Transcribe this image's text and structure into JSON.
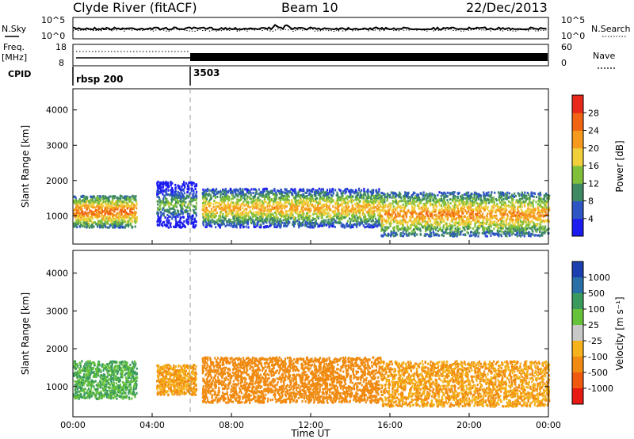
{
  "header": {
    "station": "Clyde River (fitACF)",
    "beam": "Beam 10",
    "date": "22/Dec/2013"
  },
  "noise_panel": {
    "left_label": "N.Sky",
    "left_ticks": [
      "10^5",
      "10^0"
    ],
    "right_ticks": [
      "10^5",
      "10^0"
    ],
    "right_label": "N.Search"
  },
  "freq_panel": {
    "left_label_top": "Freq.",
    "left_label_unit": "[MHz]",
    "left_ticks": [
      "18",
      "8"
    ],
    "right_ticks": [
      "60",
      "0"
    ],
    "right_label": "Nave"
  },
  "cpid_panel": {
    "label": "CPID",
    "segments": [
      {
        "start_hour": 0,
        "name": "rbsp 200"
      },
      {
        "start_hour": 6,
        "name": "3503"
      }
    ]
  },
  "range_axis": {
    "label": "Slant Range [km]",
    "ticks": [
      "1000",
      "2000",
      "3000",
      "4000"
    ]
  },
  "time_axis": {
    "label": "Time UT",
    "ticks": [
      "00:00",
      "04:00",
      "08:00",
      "12:00",
      "16:00",
      "20:00",
      "00:00"
    ]
  },
  "power_colorbar": {
    "label": "Power [dB]",
    "ticks": [
      "4",
      "8",
      "12",
      "16",
      "20",
      "24",
      "28"
    ],
    "colors": [
      "#1c1cf0",
      "#2d55c4",
      "#3f8a62",
      "#7fbf3a",
      "#f0cf3a",
      "#f59a1c",
      "#f06414",
      "#e8281a"
    ]
  },
  "velocity_colorbar": {
    "label": "Velocity [m s⁻¹]",
    "ticks": [
      "1000",
      "500",
      "100",
      "25",
      "-25",
      "-100",
      "-500",
      "-1000"
    ],
    "colors": [
      "#1b3fae",
      "#2a6fa8",
      "#3a9a5e",
      "#66c23a",
      "#c8c8c8",
      "#f5b21a",
      "#f08a10",
      "#f05a10",
      "#e81a14"
    ]
  },
  "chart_data": {
    "type": "heatmap",
    "x_unit": "hours UT",
    "xlim": [
      0,
      24
    ],
    "ylim": [
      200,
      4600
    ],
    "power_bands": [
      {
        "start": 0.0,
        "end": 3.2,
        "low": 700,
        "high": 1600,
        "value_db": 26
      },
      {
        "start": 4.2,
        "end": 6.2,
        "low": 700,
        "high": 2000,
        "value_db": 14
      },
      {
        "start": 6.5,
        "end": 15.5,
        "low": 700,
        "high": 1800,
        "value_db": 22
      },
      {
        "start": 15.5,
        "end": 24.0,
        "low": 450,
        "high": 1700,
        "value_db": 24
      }
    ],
    "velocity_bands": [
      {
        "start": 0.0,
        "end": 3.2,
        "low": 700,
        "high": 1700,
        "value": 100
      },
      {
        "start": 4.2,
        "end": 6.2,
        "low": 800,
        "high": 1600,
        "value": -100
      },
      {
        "start": 6.5,
        "end": 15.5,
        "low": 600,
        "high": 1800,
        "value": -300
      },
      {
        "start": 15.5,
        "end": 24.0,
        "low": 500,
        "high": 1700,
        "value": -100
      }
    ]
  }
}
